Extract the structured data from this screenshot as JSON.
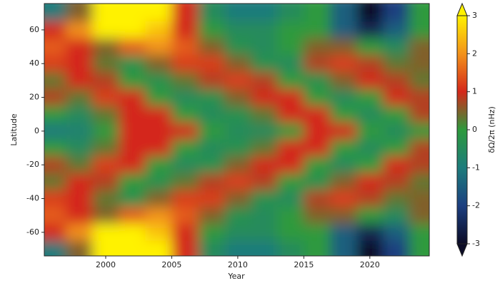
{
  "chart_data": {
    "type": "heatmap",
    "xlabel": "Year",
    "ylabel": "Latitude",
    "colorbar_label": "δΩ/2π (nHz)",
    "x": [
      1996,
      1998,
      2000,
      2002,
      2004,
      2006,
      2008,
      2010,
      2012,
      2014,
      2016,
      2018,
      2020,
      2022,
      2024
    ],
    "y": [
      70,
      60,
      50,
      40,
      30,
      20,
      10,
      0,
      -10,
      -20,
      -30,
      -40,
      -50,
      -60,
      -70
    ],
    "z": [
      [
        -1,
        0.5,
        3,
        3,
        3,
        1,
        -0.5,
        -1,
        -1,
        -0.5,
        0,
        -1.5,
        -3,
        -2,
        0
      ],
      [
        1,
        2,
        3,
        3,
        2.5,
        1,
        0,
        -0.5,
        -0.5,
        0,
        0,
        -1.5,
        -2.5,
        -1.5,
        0
      ],
      [
        1.5,
        1,
        0.5,
        1.5,
        2,
        1.5,
        0.5,
        -0.3,
        -0.5,
        0,
        0.5,
        0.5,
        0,
        -0.5,
        0.5
      ],
      [
        1.2,
        1,
        0.3,
        -0.3,
        0.5,
        1.2,
        1.2,
        0.5,
        -0.3,
        -0.5,
        0.8,
        1.2,
        0.8,
        0.3,
        0.5
      ],
      [
        0.3,
        1,
        0.8,
        0,
        -0.3,
        0.3,
        0.8,
        1.2,
        0.8,
        0,
        -0.3,
        0.5,
        1,
        0.8,
        0.3
      ],
      [
        0.8,
        0.3,
        1.2,
        1,
        0,
        -0.5,
        -0.3,
        0.5,
        1,
        1,
        0,
        -0.5,
        0,
        1,
        0.8
      ],
      [
        0,
        -0.5,
        0.3,
        1,
        1,
        0,
        -0.5,
        -0.3,
        0.3,
        1,
        1,
        0,
        -0.5,
        0,
        0.8
      ],
      [
        -1,
        -0.8,
        0,
        1,
        1,
        1,
        0,
        -0.5,
        -0.5,
        0,
        1,
        1,
        0,
        -0.5,
        0
      ],
      [
        0,
        -0.5,
        0.3,
        1,
        1,
        0,
        -0.5,
        -0.3,
        0.3,
        1,
        1,
        0,
        -0.5,
        0,
        0.8
      ],
      [
        0.8,
        0.3,
        1.2,
        1,
        0,
        -0.5,
        -0.3,
        0.5,
        1,
        1,
        0,
        -0.5,
        0,
        1,
        0.8
      ],
      [
        0.3,
        1,
        0.8,
        0,
        -0.3,
        0.3,
        0.8,
        1.2,
        0.8,
        0,
        -0.3,
        0.5,
        1,
        0.8,
        0.3
      ],
      [
        1.2,
        1,
        0.3,
        -0.3,
        0.5,
        1.2,
        1.2,
        0.5,
        -0.3,
        -0.5,
        0.8,
        1.2,
        0.8,
        0.3,
        0.5
      ],
      [
        1.5,
        1,
        0.5,
        1.5,
        2,
        1.5,
        0.5,
        -0.3,
        -0.5,
        0,
        0.5,
        0.5,
        0,
        -0.5,
        0.5
      ],
      [
        1,
        2,
        3,
        3,
        2.5,
        1,
        0,
        -0.5,
        -0.5,
        0,
        0,
        -1.5,
        -2.5,
        -1.5,
        0
      ],
      [
        -1,
        0.5,
        3,
        3,
        3,
        1,
        -0.5,
        -1,
        -1,
        -0.5,
        0,
        -1.5,
        -3,
        -2,
        0
      ]
    ],
    "xlim": [
      1995.35,
      2024.5
    ],
    "ylim": [
      -74,
      75.6
    ],
    "xticks": [
      2000,
      2005,
      2010,
      2015,
      2020
    ],
    "yticks": [
      60,
      40,
      20,
      0,
      -20,
      -40,
      -60
    ],
    "clim": [
      -3,
      3
    ],
    "cticks": [
      -3,
      -2,
      -1,
      0,
      1,
      2,
      3
    ],
    "colors": [
      "#0b0b26",
      "#1c3f80",
      "#1d7c7c",
      "#2d9a3c",
      "#d4281a",
      "#f3921a",
      "#fff200"
    ]
  }
}
